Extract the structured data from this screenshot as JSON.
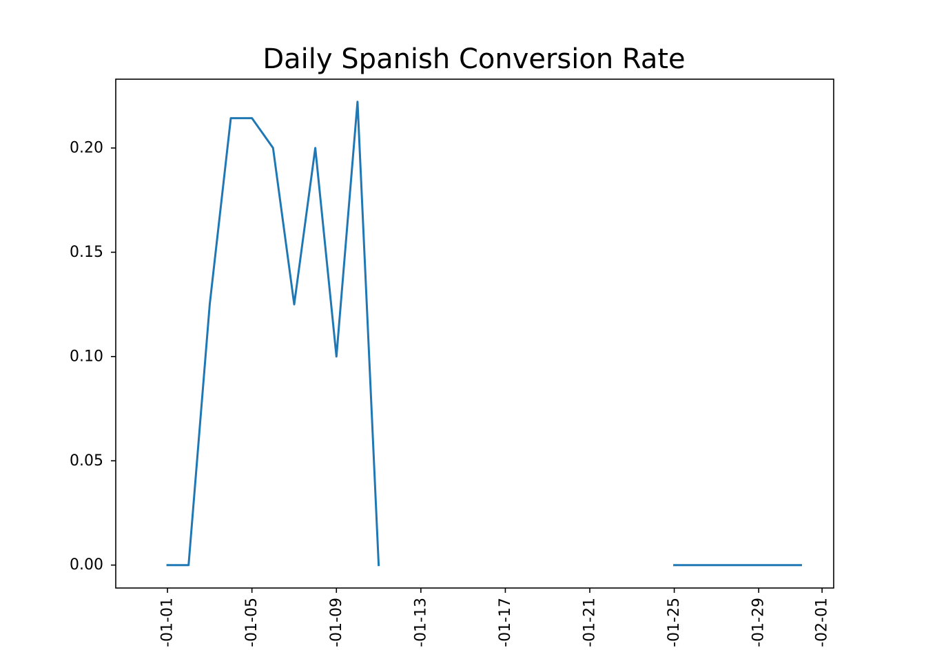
{
  "chart_data": {
    "type": "line",
    "title": "Daily Spanish Conversion Rate",
    "xlabel": "",
    "ylabel": "",
    "x_type": "date",
    "xlim": [
      "2023-12-29.55",
      "2024-02-01.55"
    ],
    "ylim": [
      -0.011,
      0.233
    ],
    "xticks": [
      "2024-01-01",
      "2024-01-05",
      "2024-01-09",
      "2024-01-13",
      "2024-01-17",
      "2024-01-21",
      "2024-01-25",
      "2024-01-29",
      "2024-02-01"
    ],
    "xtick_labels": [
      "-01-01",
      "-01-05",
      "-01-09",
      "-01-13",
      "-01-17",
      "-01-21",
      "-01-25",
      "-01-29",
      "-02-01"
    ],
    "yticks": [
      0.0,
      0.05,
      0.1,
      0.15,
      0.2
    ],
    "ytick_labels": [
      "0.00",
      "0.05",
      "0.10",
      "0.15",
      "0.20"
    ],
    "grid": false,
    "series": [
      {
        "color": "#1f77b4",
        "points": [
          {
            "x": "2024-01-01",
            "y": 0.0
          },
          {
            "x": "2024-01-02",
            "y": 0.0
          },
          {
            "x": "2024-01-03",
            "y": 0.125
          },
          {
            "x": "2024-01-04",
            "y": 0.2143
          },
          {
            "x": "2024-01-05",
            "y": 0.2143
          },
          {
            "x": "2024-01-06",
            "y": 0.2
          },
          {
            "x": "2024-01-07",
            "y": 0.125
          },
          {
            "x": "2024-01-08",
            "y": 0.2
          },
          {
            "x": "2024-01-09",
            "y": 0.1
          },
          {
            "x": "2024-01-10",
            "y": 0.2222
          },
          {
            "x": "2024-01-11",
            "y": 0.0
          },
          {
            "x": "2024-01-12",
            "y": null
          },
          {
            "x": "2024-01-13",
            "y": null
          },
          {
            "x": "2024-01-14",
            "y": null
          },
          {
            "x": "2024-01-15",
            "y": null
          },
          {
            "x": "2024-01-16",
            "y": null
          },
          {
            "x": "2024-01-17",
            "y": null
          },
          {
            "x": "2024-01-18",
            "y": null
          },
          {
            "x": "2024-01-19",
            "y": null
          },
          {
            "x": "2024-01-20",
            "y": null
          },
          {
            "x": "2024-01-21",
            "y": null
          },
          {
            "x": "2024-01-22",
            "y": null
          },
          {
            "x": "2024-01-23",
            "y": null
          },
          {
            "x": "2024-01-24",
            "y": null
          },
          {
            "x": "2024-01-25",
            "y": 0.0
          },
          {
            "x": "2024-01-26",
            "y": 0.0
          },
          {
            "x": "2024-01-27",
            "y": 0.0
          },
          {
            "x": "2024-01-28",
            "y": 0.0
          },
          {
            "x": "2024-01-29",
            "y": 0.0
          },
          {
            "x": "2024-01-30",
            "y": 0.0
          },
          {
            "x": "2024-01-31",
            "y": 0.0
          }
        ]
      }
    ]
  }
}
